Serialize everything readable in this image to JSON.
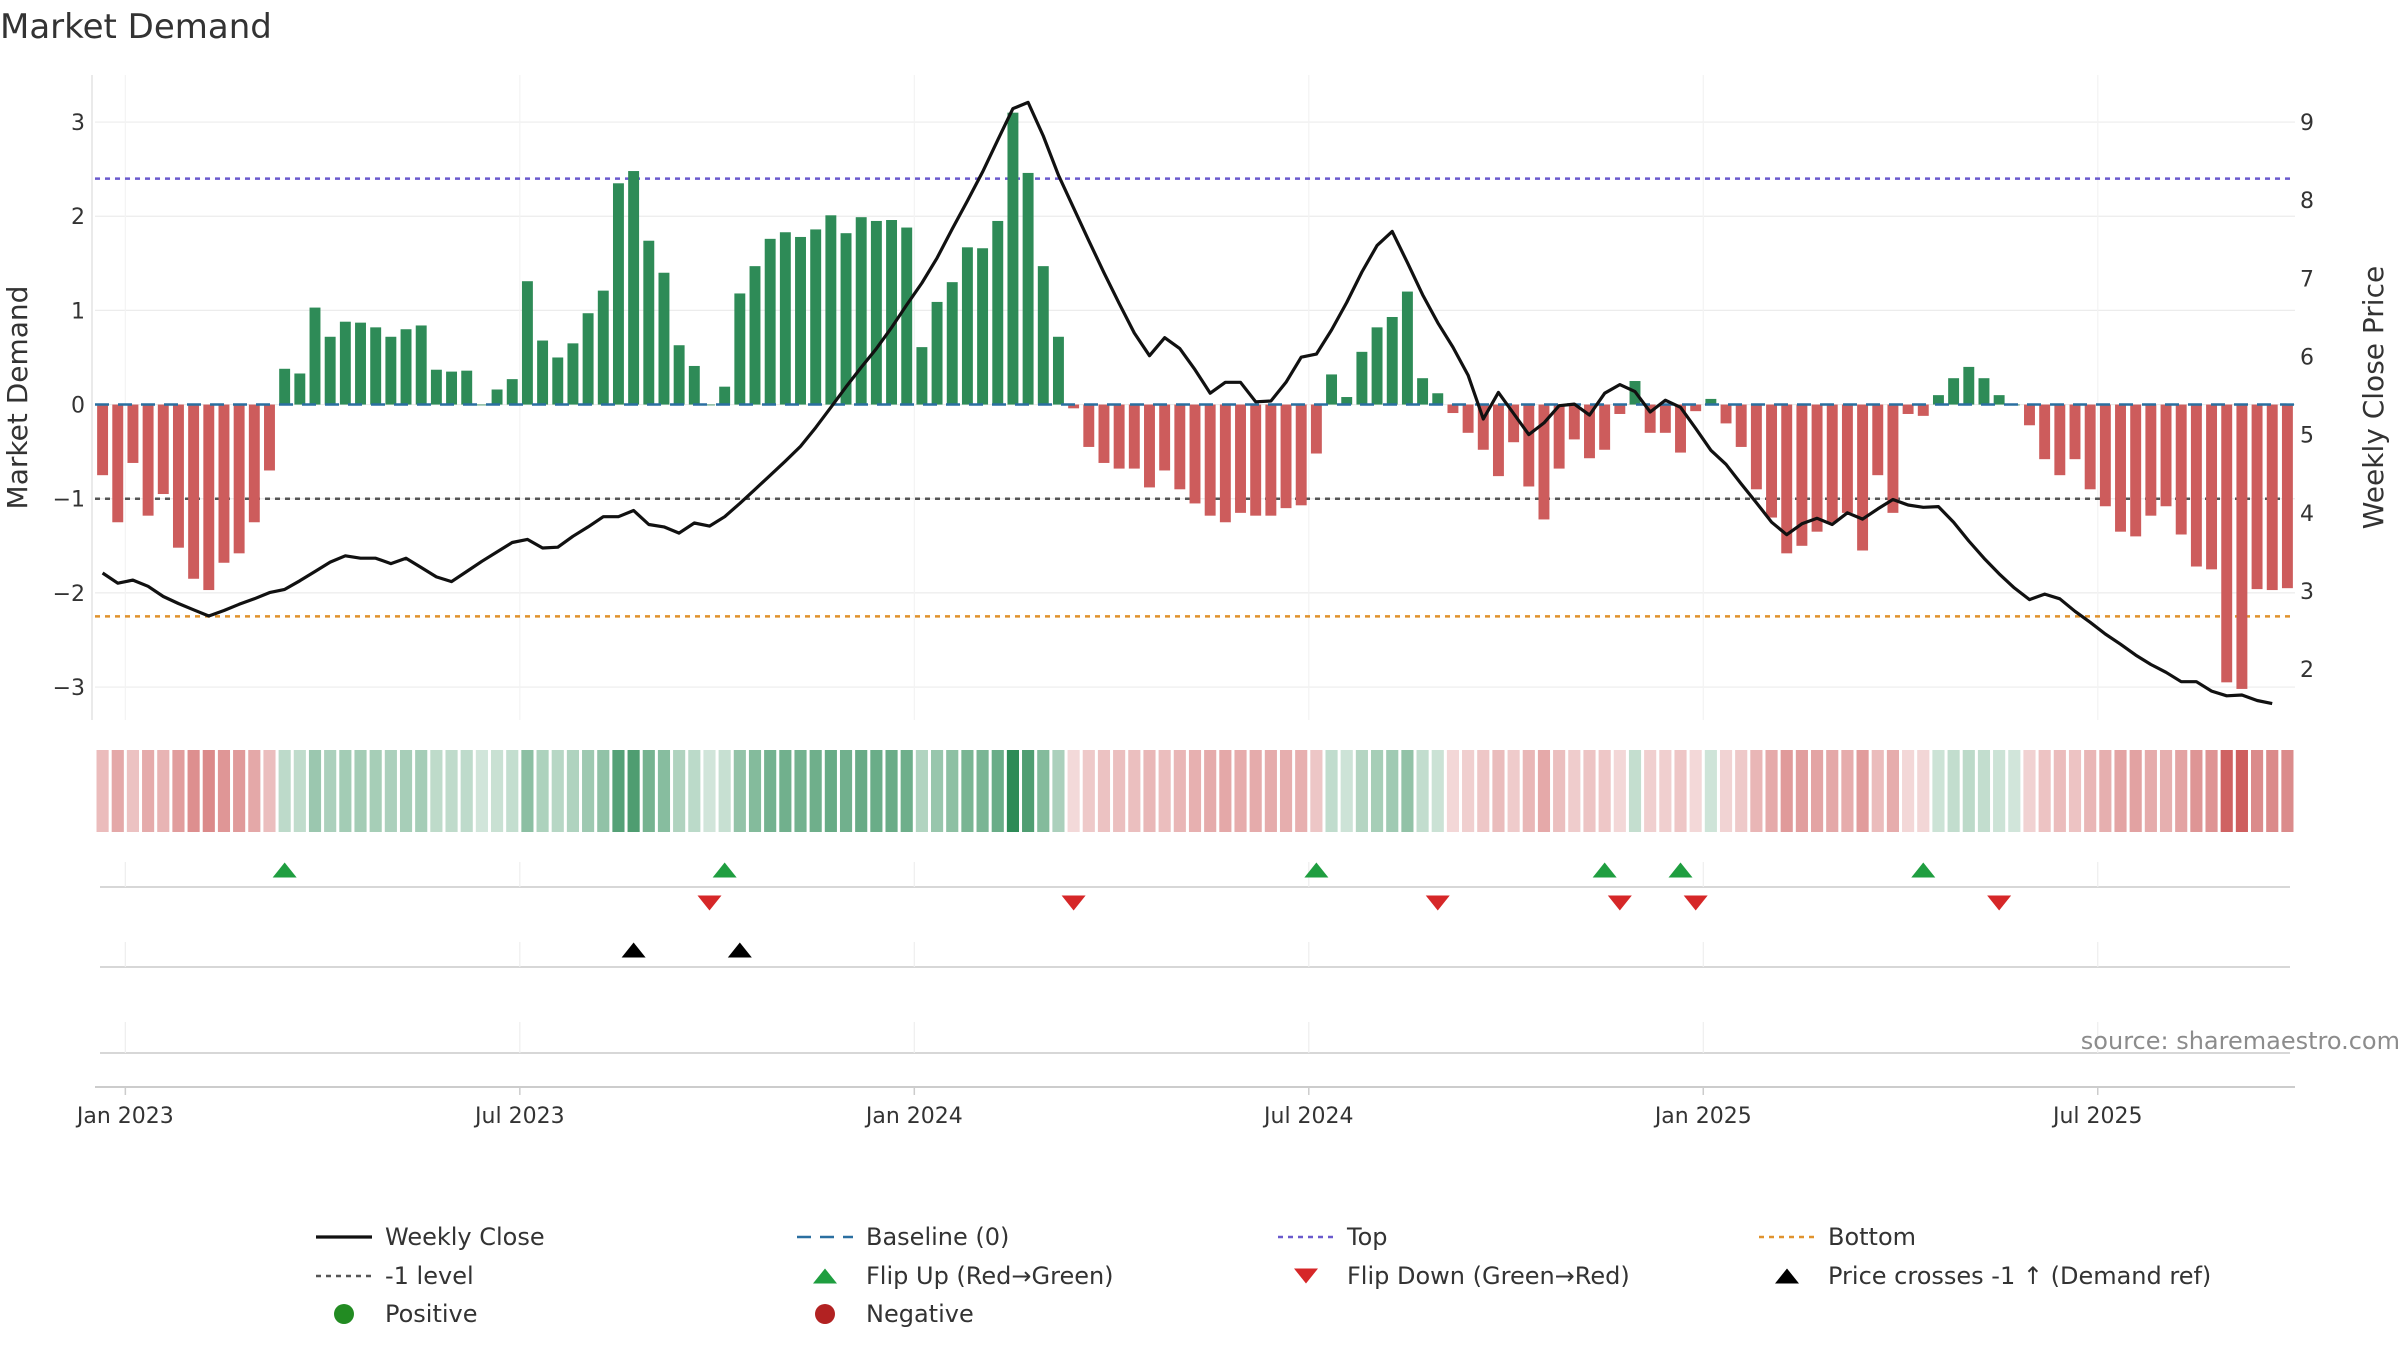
{
  "chart_data": {
    "type": "bar+line",
    "title": "Market Demand",
    "ylabel_left": "Market Demand",
    "ylabel_right": "Weekly Close Price",
    "ylim_left": [
      -3.35,
      3.5
    ],
    "ylim_right": [
      1.35,
      9.6
    ],
    "yticks_left": [
      3,
      2,
      1,
      0,
      -1,
      -2,
      -3
    ],
    "yticks_right": [
      9,
      8,
      7,
      6,
      5,
      4,
      3,
      2
    ],
    "x_tick_labels": [
      "Jan 2023",
      "Jul 2023",
      "Jan 2024",
      "Jul 2024",
      "Jan 2025",
      "Jul 2025"
    ],
    "x_tick_weeks": [
      1.5,
      27.5,
      53.5,
      79.5,
      105.5,
      131.5
    ],
    "reference_lines": {
      "top": 2.4,
      "bottom": -2.25,
      "minus_one": -1,
      "baseline": 0
    },
    "demand": [
      -0.75,
      -1.25,
      -0.62,
      -1.18,
      -0.95,
      -1.52,
      -1.85,
      -1.97,
      -1.68,
      -1.58,
      -1.25,
      -0.7,
      0.38,
      0.33,
      1.03,
      0.72,
      0.88,
      0.87,
      0.82,
      0.72,
      0.8,
      0.84,
      0.37,
      0.35,
      0.36,
      0,
      0.16,
      0.27,
      1.31,
      0.68,
      0.5,
      0.65,
      0.97,
      1.21,
      2.35,
      2.48,
      1.74,
      1.4,
      0.63,
      0.41,
      0,
      0.19,
      1.18,
      1.47,
      1.76,
      1.83,
      1.78,
      1.86,
      2.01,
      1.82,
      1.99,
      1.95,
      1.96,
      1.88,
      0.61,
      1.09,
      1.3,
      1.67,
      1.66,
      1.95,
      3.1,
      2.46,
      1.47,
      0.72,
      -0.04,
      -0.45,
      -0.62,
      -0.68,
      -0.68,
      -0.88,
      -0.7,
      -0.9,
      -1.05,
      -1.18,
      -1.25,
      -1.15,
      -1.18,
      -1.18,
      -1.1,
      -1.07,
      -0.52,
      0.32,
      0.08,
      0.56,
      0.82,
      0.93,
      1.2,
      0.28,
      0.12,
      -0.09,
      -0.3,
      -0.48,
      -0.76,
      -0.4,
      -0.87,
      -1.22,
      -0.68,
      -0.37,
      -0.57,
      -0.48,
      -0.1,
      0.25,
      -0.3,
      -0.3,
      -0.51,
      -0.07,
      0.06,
      -0.2,
      -0.45,
      -0.9,
      -1.2,
      -1.58,
      -1.5,
      -1.35,
      -1.25,
      -1.15,
      -1.55,
      -0.75,
      -1.15,
      -0.1,
      -0.12,
      0.1,
      0.28,
      0.4,
      0.28,
      0.1,
      0,
      -0.22,
      -0.58,
      -0.75,
      -0.58,
      -0.9,
      -1.08,
      -1.35,
      -1.4,
      -1.18,
      -1.08,
      -1.38,
      -1.72,
      -1.75,
      -2.95,
      -3.02,
      -1.96,
      -1.97,
      -1.95
    ],
    "weekly_close": [
      3.23,
      3.1,
      3.14,
      3.06,
      2.93,
      2.84,
      2.76,
      2.68,
      2.75,
      2.83,
      2.9,
      2.98,
      3.02,
      3.13,
      3.25,
      3.37,
      3.45,
      3.42,
      3.42,
      3.35,
      3.42,
      3.3,
      3.18,
      3.12,
      3.25,
      3.38,
      3.5,
      3.62,
      3.66,
      3.55,
      3.56,
      3.7,
      3.82,
      3.95,
      3.95,
      4.03,
      3.85,
      3.82,
      3.74,
      3.87,
      3.83,
      3.95,
      4.12,
      4.3,
      4.48,
      4.66,
      4.85,
      5.09,
      5.35,
      5.61,
      5.86,
      6.1,
      6.37,
      6.66,
      6.94,
      7.26,
      7.63,
      7.99,
      8.36,
      8.77,
      9.17,
      9.25,
      8.82,
      8.32,
      7.9,
      7.48,
      7.07,
      6.68,
      6.3,
      6.01,
      6.24,
      6.1,
      5.83,
      5.53,
      5.67,
      5.67,
      5.42,
      5.43,
      5.67,
      5.99,
      6.03,
      6.34,
      6.69,
      7.08,
      7.42,
      7.6,
      7.2,
      6.79,
      6.43,
      6.12,
      5.76,
      5.2,
      5.54,
      5.27,
      5.0,
      5.15,
      5.37,
      5.39,
      5.25,
      5.53,
      5.64,
      5.55,
      5.29,
      5.44,
      5.35,
      5.08,
      4.8,
      4.62,
      4.37,
      4.13,
      3.88,
      3.72,
      3.86,
      3.93,
      3.85,
      4.0,
      3.92,
      4.05,
      4.17,
      4.1,
      4.07,
      4.08,
      3.88,
      3.64,
      3.42,
      3.22,
      3.04,
      2.89,
      2.96,
      2.9,
      2.74,
      2.6,
      2.45,
      2.32,
      2.18,
      2.06,
      1.96,
      1.84,
      1.84,
      1.72,
      1.66,
      1.67,
      1.6,
      1.56
    ],
    "flip_up_weeks": [
      12,
      41,
      80,
      99,
      104,
      120
    ],
    "flip_down_weeks": [
      40,
      64,
      88,
      100,
      105,
      125
    ],
    "price_cross_weeks": [
      35,
      42
    ],
    "colors": {
      "positive": "#2e8b57",
      "negative": "#cd5c5c",
      "line": "#111111",
      "baseline": "#2a6fa0",
      "top": "#6a5acd",
      "bottom": "#e0922c",
      "minus_one": "#555555",
      "flip_up": "#1f9e40",
      "flip_down": "#d62728",
      "cross": "#000000",
      "legend_positive": "#228b22",
      "legend_negative": "#b22222"
    },
    "legend": [
      {
        "key": "weekly_close",
        "label": "Weekly Close"
      },
      {
        "key": "baseline",
        "label": "Baseline (0)"
      },
      {
        "key": "top",
        "label": "Top"
      },
      {
        "key": "bottom",
        "label": "Bottom"
      },
      {
        "key": "minus_one",
        "label": "-1 level"
      },
      {
        "key": "flip_up",
        "label": "Flip Up (Red→Green)"
      },
      {
        "key": "flip_down",
        "label": "Flip Down (Green→Red)"
      },
      {
        "key": "price_cross",
        "label": "Price crosses -1 ↑ (Demand ref)"
      },
      {
        "key": "positive",
        "label": "Positive"
      },
      {
        "key": "negative",
        "label": "Negative"
      }
    ],
    "source": "source: sharemaestro.com"
  }
}
